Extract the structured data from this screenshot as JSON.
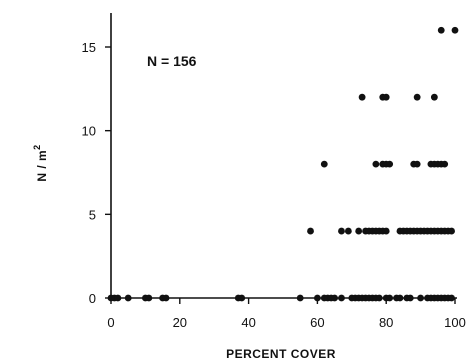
{
  "chart_data": {
    "type": "scatter",
    "title": "",
    "xlabel": "PERCENT COVER",
    "ylabel": "N / m",
    "ylabel_superscript": "2",
    "annotation": "N = 156",
    "xlim": [
      0,
      100
    ],
    "ylim": [
      0,
      17
    ],
    "xticks": [
      0,
      20,
      40,
      60,
      80,
      100
    ],
    "yticks": [
      0,
      5,
      10,
      15
    ],
    "grid": false,
    "colors": {
      "points": "#111111",
      "axes": "#111111"
    },
    "series": [
      {
        "points": [
          [
            0,
            0
          ],
          [
            1,
            0
          ],
          [
            2,
            0
          ],
          [
            5,
            0
          ],
          [
            10,
            0
          ],
          [
            11,
            0
          ],
          [
            15,
            0
          ],
          [
            16,
            0
          ],
          [
            37,
            0
          ],
          [
            38,
            0
          ],
          [
            55,
            0
          ],
          [
            60,
            0
          ],
          [
            62,
            0
          ],
          [
            63,
            0
          ],
          [
            64,
            0
          ],
          [
            65,
            0
          ],
          [
            67,
            0
          ],
          [
            70,
            0
          ],
          [
            71,
            0
          ],
          [
            72,
            0
          ],
          [
            73,
            0
          ],
          [
            74,
            0
          ],
          [
            75,
            0
          ],
          [
            76,
            0
          ],
          [
            77,
            0
          ],
          [
            78,
            0
          ],
          [
            80,
            0
          ],
          [
            81,
            0
          ],
          [
            83,
            0
          ],
          [
            84,
            0
          ],
          [
            86,
            0
          ],
          [
            87,
            0
          ],
          [
            90,
            0
          ],
          [
            92,
            0
          ],
          [
            93,
            0
          ],
          [
            94,
            0
          ],
          [
            95,
            0
          ],
          [
            96,
            0
          ],
          [
            97,
            0
          ],
          [
            98,
            0
          ],
          [
            99,
            0
          ],
          [
            58,
            4
          ],
          [
            67,
            4
          ],
          [
            69,
            4
          ],
          [
            72,
            4
          ],
          [
            74,
            4
          ],
          [
            75,
            4
          ],
          [
            76,
            4
          ],
          [
            77,
            4
          ],
          [
            78,
            4
          ],
          [
            79,
            4
          ],
          [
            80,
            4
          ],
          [
            84,
            4
          ],
          [
            85,
            4
          ],
          [
            86,
            4
          ],
          [
            87,
            4
          ],
          [
            88,
            4
          ],
          [
            89,
            4
          ],
          [
            90,
            4
          ],
          [
            91,
            4
          ],
          [
            92,
            4
          ],
          [
            93,
            4
          ],
          [
            94,
            4
          ],
          [
            95,
            4
          ],
          [
            96,
            4
          ],
          [
            97,
            4
          ],
          [
            98,
            4
          ],
          [
            99,
            4
          ],
          [
            62,
            8
          ],
          [
            77,
            8
          ],
          [
            79,
            8
          ],
          [
            80,
            8
          ],
          [
            81,
            8
          ],
          [
            88,
            8
          ],
          [
            89,
            8
          ],
          [
            93,
            8
          ],
          [
            94,
            8
          ],
          [
            95,
            8
          ],
          [
            96,
            8
          ],
          [
            97,
            8
          ],
          [
            73,
            12
          ],
          [
            79,
            12
          ],
          [
            80,
            12
          ],
          [
            89,
            12
          ],
          [
            94,
            12
          ],
          [
            96,
            16
          ],
          [
            100,
            16
          ]
        ]
      }
    ]
  }
}
